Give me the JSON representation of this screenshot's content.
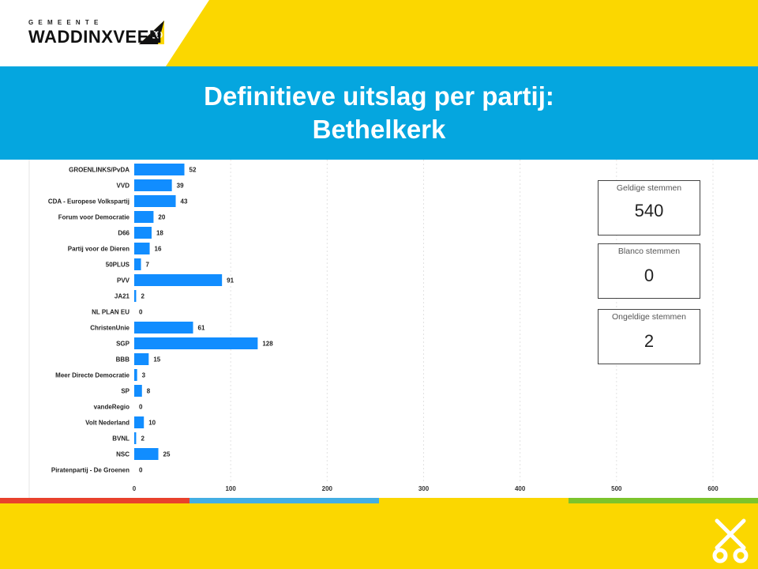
{
  "header": {
    "org_small": "GEMEENTE",
    "org_name": "WADDINXVEEN",
    "title_line1": "Definitieve uitslag per partij:",
    "title_line2": "Bethelkerk"
  },
  "colors": {
    "brand_yellow": "#fbd700",
    "title_blue": "#05a6df",
    "bar_blue": "#118dff",
    "stripe_red": "#e8412c",
    "stripe_blue": "#43aee3",
    "stripe_yellow": "#fbd700",
    "stripe_green": "#7cc42b"
  },
  "cards": [
    {
      "label": "Geldige stemmen",
      "value": "540"
    },
    {
      "label": "Blanco stemmen",
      "value": "0"
    },
    {
      "label": "Ongeldige stemmen",
      "value": "2"
    }
  ],
  "chart_data": {
    "type": "bar",
    "orientation": "horizontal",
    "categories": [
      "GROENLINKS/PvDA",
      "VVD",
      "CDA - Europese Volkspartij",
      "Forum voor Democratie",
      "D66",
      "Partij voor de Dieren",
      "50PLUS",
      "PVV",
      "JA21",
      "NL PLAN EU",
      "ChristenUnie",
      "SGP",
      "BBB",
      "Meer Directe Democratie",
      "SP",
      "vandeRegio",
      "Volt Nederland",
      "BVNL",
      "NSC",
      "Piratenpartij - De Groenen"
    ],
    "values": [
      52,
      39,
      43,
      20,
      18,
      16,
      7,
      91,
      2,
      0,
      61,
      128,
      15,
      3,
      8,
      0,
      10,
      2,
      25,
      0
    ],
    "xlim": [
      0,
      600
    ],
    "xticks": [
      0,
      100,
      200,
      300,
      400,
      500,
      600
    ],
    "grid": "vertical dotted",
    "data_labels": true
  }
}
